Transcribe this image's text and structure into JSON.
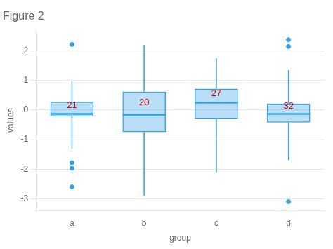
{
  "chart_data": {
    "type": "box",
    "title": "Figure 2",
    "x_label": "group",
    "y_label": "values",
    "categories": [
      "a",
      "b",
      "c",
      "d"
    ],
    "q1": [
      -0.22,
      -0.75,
      -0.3,
      -0.42
    ],
    "median": [
      -0.13,
      -0.16,
      0.25,
      -0.13
    ],
    "q3": [
      0.28,
      0.62,
      0.72,
      0.22
    ],
    "whislo": [
      -1.3,
      -2.9,
      -2.1,
      -1.7
    ],
    "whishi": [
      0.98,
      2.2,
      1.75,
      1.35
    ],
    "fliers": [
      [
        2.22,
        -1.78,
        -1.97,
        -2.6
      ],
      [],
      [],
      [
        2.38,
        2.15,
        -3.1
      ]
    ],
    "annotations": [
      {
        "x": "a",
        "y": 0.15,
        "text": "21",
        "color": "#cc0000"
      },
      {
        "x": "b",
        "y": 0.25,
        "text": "20",
        "color": "#cc0000"
      },
      {
        "x": "c",
        "y": 0.55,
        "text": "27",
        "color": "#cc0000"
      },
      {
        "x": "d",
        "y": 0.12,
        "text": "32",
        "color": "#cc0000"
      }
    ],
    "ylim": [
      -3.4,
      2.7
    ],
    "yticks": [
      -3,
      -2,
      -1,
      0,
      1,
      2
    ],
    "grid": true
  }
}
